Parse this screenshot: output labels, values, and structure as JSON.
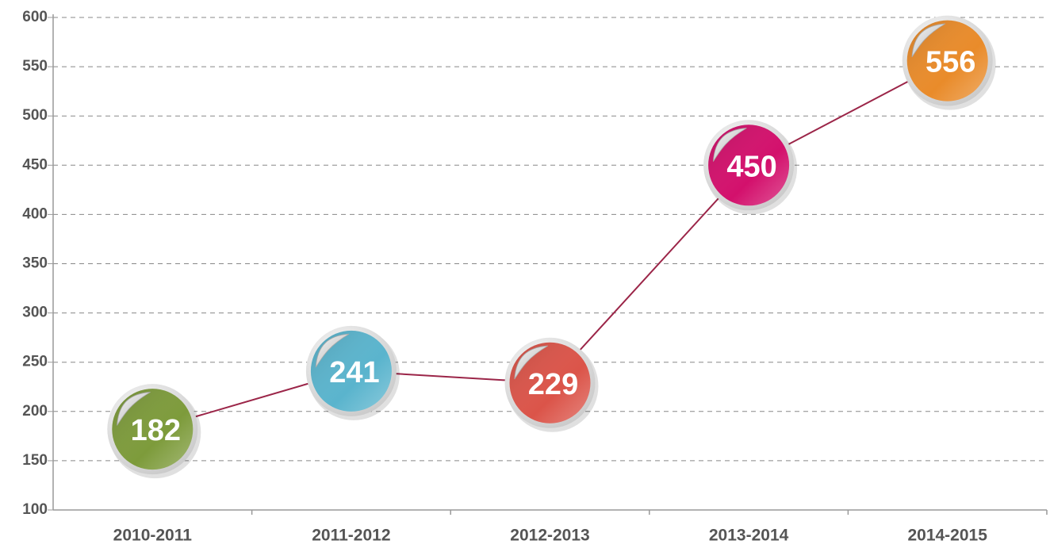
{
  "chart_data": {
    "type": "line",
    "categories": [
      "2010-2011",
      "2011-2012",
      "2012-2013",
      "2013-2014",
      "2014-2015"
    ],
    "values": [
      182,
      241,
      229,
      450,
      556
    ],
    "color": "#9b2548",
    "point_colors": [
      "#7d9b3b",
      "#5ab4cd",
      "#db5449",
      "#d3106c",
      "#e98b2a"
    ],
    "ylim": [
      100,
      600
    ],
    "yticks": [
      100,
      150,
      200,
      250,
      300,
      350,
      400,
      450,
      500,
      550,
      600
    ],
    "grid": true
  }
}
